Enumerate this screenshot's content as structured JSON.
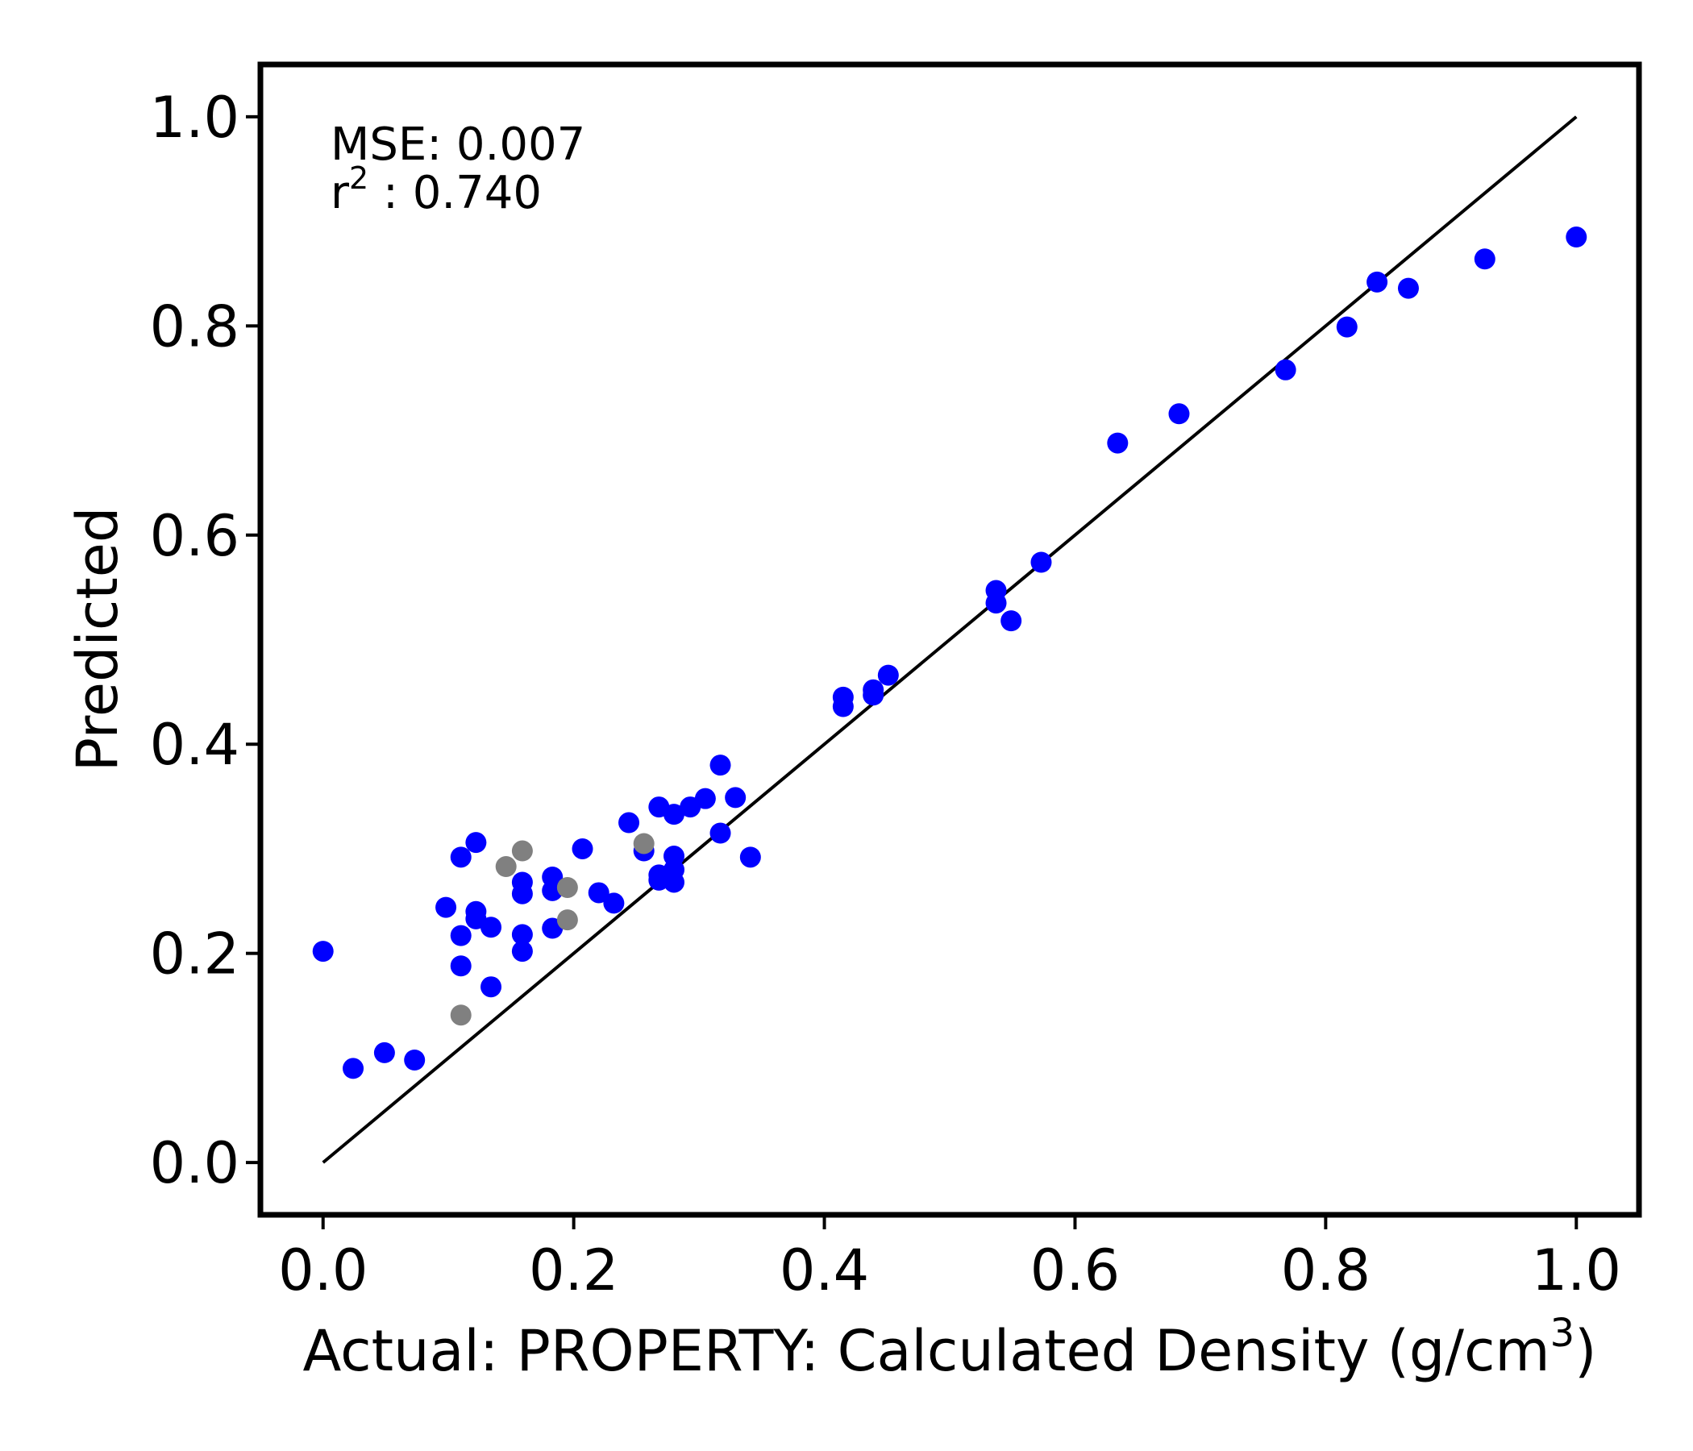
{
  "chart_data": {
    "type": "scatter",
    "xlabel_main": "Actual: PROPERTY: Calculated Density (g/cm",
    "xlabel_sup": "3",
    "xlabel_close": ")",
    "ylabel": "Predicted",
    "xlim": [
      -0.05,
      1.05
    ],
    "ylim": [
      -0.05,
      1.05
    ],
    "xticks": [
      "0.0",
      "0.2",
      "0.4",
      "0.6",
      "0.8",
      "1.0"
    ],
    "yticks": [
      "0.0",
      "0.2",
      "0.4",
      "0.6",
      "0.8",
      "1.0"
    ],
    "grid": false,
    "annotations": {
      "mse_label": "MSE: 0.007",
      "r2_main": "r",
      "r2_sup": "2",
      "r2_value": " : 0.740"
    },
    "identity_line": {
      "x": [
        0,
        1
      ],
      "y": [
        0,
        1
      ],
      "color": "#000000"
    },
    "series": [
      {
        "color": "#0000ff",
        "points": [
          [
            0.0,
            0.202
          ],
          [
            0.024,
            0.09
          ],
          [
            0.049,
            0.105
          ],
          [
            0.073,
            0.098
          ],
          [
            0.098,
            0.244
          ],
          [
            0.11,
            0.292
          ],
          [
            0.11,
            0.217
          ],
          [
            0.11,
            0.188
          ],
          [
            0.122,
            0.306
          ],
          [
            0.122,
            0.24
          ],
          [
            0.122,
            0.233
          ],
          [
            0.134,
            0.225
          ],
          [
            0.134,
            0.168
          ],
          [
            0.159,
            0.268
          ],
          [
            0.159,
            0.257
          ],
          [
            0.159,
            0.218
          ],
          [
            0.159,
            0.202
          ],
          [
            0.183,
            0.273
          ],
          [
            0.183,
            0.26
          ],
          [
            0.183,
            0.224
          ],
          [
            0.207,
            0.3
          ],
          [
            0.22,
            0.258
          ],
          [
            0.232,
            0.248
          ],
          [
            0.244,
            0.325
          ],
          [
            0.256,
            0.298
          ],
          [
            0.268,
            0.34
          ],
          [
            0.268,
            0.275
          ],
          [
            0.268,
            0.27
          ],
          [
            0.28,
            0.333
          ],
          [
            0.28,
            0.293
          ],
          [
            0.28,
            0.28
          ],
          [
            0.28,
            0.268
          ],
          [
            0.293,
            0.34
          ],
          [
            0.305,
            0.348
          ],
          [
            0.317,
            0.38
          ],
          [
            0.317,
            0.315
          ],
          [
            0.329,
            0.349
          ],
          [
            0.341,
            0.292
          ],
          [
            0.415,
            0.445
          ],
          [
            0.415,
            0.436
          ],
          [
            0.439,
            0.452
          ],
          [
            0.439,
            0.447
          ],
          [
            0.451,
            0.466
          ],
          [
            0.537,
            0.547
          ],
          [
            0.537,
            0.535
          ],
          [
            0.549,
            0.518
          ],
          [
            0.573,
            0.574
          ],
          [
            0.634,
            0.688
          ],
          [
            0.683,
            0.716
          ],
          [
            0.768,
            0.758
          ],
          [
            0.817,
            0.799
          ],
          [
            0.841,
            0.842
          ],
          [
            0.866,
            0.836
          ],
          [
            0.927,
            0.864
          ],
          [
            1.0,
            0.885
          ]
        ]
      },
      {
        "color": "#808080",
        "points": [
          [
            0.11,
            0.141
          ],
          [
            0.146,
            0.283
          ],
          [
            0.159,
            0.298
          ],
          [
            0.195,
            0.263
          ],
          [
            0.195,
            0.232
          ],
          [
            0.256,
            0.305
          ]
        ]
      }
    ]
  }
}
